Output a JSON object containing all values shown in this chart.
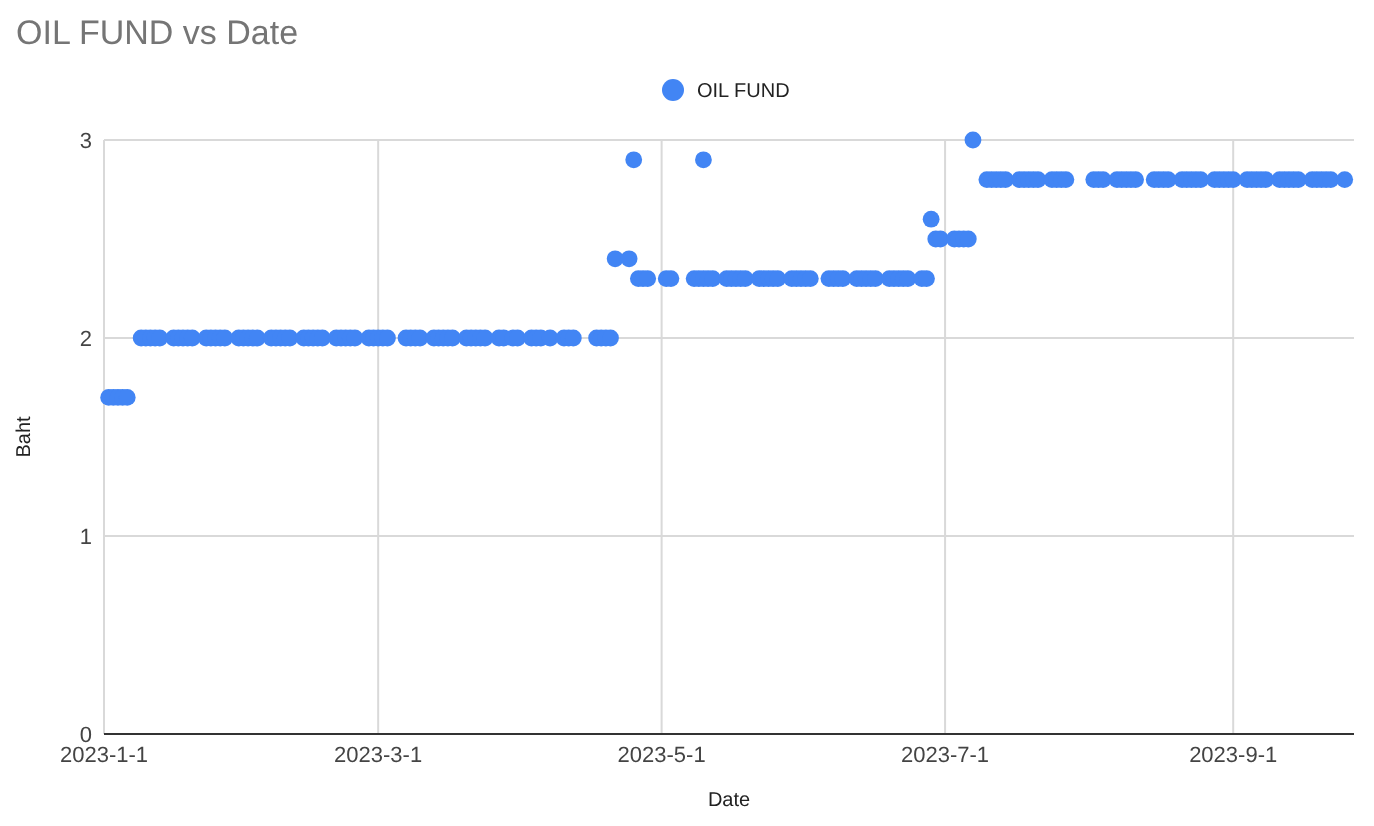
{
  "chart_data": {
    "type": "scatter",
    "title": "OIL FUND vs Date",
    "xlabel": "Date",
    "ylabel": "Baht",
    "legend": "top",
    "grid": true,
    "marker": "circle",
    "xlim": [
      "2023-01-01",
      "2023-09-27"
    ],
    "xticks": [
      {
        "value": "2023-01-01",
        "label": "2023-1-1"
      },
      {
        "value": "2023-03-01",
        "label": "2023-3-1"
      },
      {
        "value": "2023-05-01",
        "label": "2023-5-1"
      },
      {
        "value": "2023-07-01",
        "label": "2023-7-1"
      },
      {
        "value": "2023-09-01",
        "label": "2023-9-1"
      }
    ],
    "ylim": [
      0,
      3
    ],
    "yticks": [
      0,
      1,
      2,
      3
    ],
    "series": [
      {
        "name": "OIL FUND",
        "color": "#4285f4",
        "x": [
          "2023-01-02",
          "2023-01-03",
          "2023-01-04",
          "2023-01-05",
          "2023-01-06",
          "2023-01-09",
          "2023-01-10",
          "2023-01-11",
          "2023-01-12",
          "2023-01-13",
          "2023-01-16",
          "2023-01-17",
          "2023-01-18",
          "2023-01-19",
          "2023-01-20",
          "2023-01-23",
          "2023-01-24",
          "2023-01-25",
          "2023-01-26",
          "2023-01-27",
          "2023-01-30",
          "2023-01-31",
          "2023-02-01",
          "2023-02-02",
          "2023-02-03",
          "2023-02-06",
          "2023-02-07",
          "2023-02-08",
          "2023-02-09",
          "2023-02-10",
          "2023-02-13",
          "2023-02-14",
          "2023-02-15",
          "2023-02-16",
          "2023-02-17",
          "2023-02-20",
          "2023-02-21",
          "2023-02-22",
          "2023-02-23",
          "2023-02-24",
          "2023-02-27",
          "2023-02-28",
          "2023-03-01",
          "2023-03-02",
          "2023-03-03",
          "2023-03-07",
          "2023-03-08",
          "2023-03-09",
          "2023-03-10",
          "2023-03-13",
          "2023-03-14",
          "2023-03-15",
          "2023-03-16",
          "2023-03-17",
          "2023-03-20",
          "2023-03-21",
          "2023-03-22",
          "2023-03-23",
          "2023-03-24",
          "2023-03-27",
          "2023-03-28",
          "2023-03-30",
          "2023-03-31",
          "2023-04-03",
          "2023-04-04",
          "2023-04-05",
          "2023-04-07",
          "2023-04-10",
          "2023-04-11",
          "2023-04-12",
          "2023-04-17",
          "2023-04-18",
          "2023-04-19",
          "2023-04-20",
          "2023-04-21",
          "2023-04-24",
          "2023-04-25",
          "2023-04-26",
          "2023-04-27",
          "2023-04-28",
          "2023-05-02",
          "2023-05-03",
          "2023-05-08",
          "2023-05-09",
          "2023-05-10",
          "2023-05-10",
          "2023-05-11",
          "2023-05-12",
          "2023-05-15",
          "2023-05-16",
          "2023-05-17",
          "2023-05-18",
          "2023-05-19",
          "2023-05-22",
          "2023-05-23",
          "2023-05-24",
          "2023-05-25",
          "2023-05-26",
          "2023-05-29",
          "2023-05-30",
          "2023-05-31",
          "2023-06-01",
          "2023-06-02",
          "2023-06-06",
          "2023-06-07",
          "2023-06-08",
          "2023-06-09",
          "2023-06-12",
          "2023-06-13",
          "2023-06-14",
          "2023-06-15",
          "2023-06-16",
          "2023-06-19",
          "2023-06-20",
          "2023-06-21",
          "2023-06-22",
          "2023-06-23",
          "2023-06-26",
          "2023-06-27",
          "2023-06-28",
          "2023-06-29",
          "2023-06-30",
          "2023-07-03",
          "2023-07-04",
          "2023-07-05",
          "2023-07-06",
          "2023-07-07",
          "2023-07-10",
          "2023-07-11",
          "2023-07-12",
          "2023-07-13",
          "2023-07-14",
          "2023-07-17",
          "2023-07-18",
          "2023-07-19",
          "2023-07-20",
          "2023-07-21",
          "2023-07-24",
          "2023-07-25",
          "2023-07-26",
          "2023-07-27",
          "2023-08-02",
          "2023-08-03",
          "2023-08-04",
          "2023-08-07",
          "2023-08-08",
          "2023-08-09",
          "2023-08-10",
          "2023-08-11",
          "2023-08-15",
          "2023-08-16",
          "2023-08-17",
          "2023-08-18",
          "2023-08-21",
          "2023-08-22",
          "2023-08-23",
          "2023-08-24",
          "2023-08-25",
          "2023-08-28",
          "2023-08-29",
          "2023-08-30",
          "2023-08-31",
          "2023-09-01",
          "2023-09-04",
          "2023-09-05",
          "2023-09-06",
          "2023-09-07",
          "2023-09-08",
          "2023-09-11",
          "2023-09-12",
          "2023-09-13",
          "2023-09-14",
          "2023-09-15",
          "2023-09-18",
          "2023-09-19",
          "2023-09-20",
          "2023-09-21",
          "2023-09-22",
          "2023-09-25"
        ],
        "values": [
          1.7,
          1.7,
          1.7,
          1.7,
          1.7,
          2,
          2,
          2,
          2,
          2,
          2,
          2,
          2,
          2,
          2,
          2,
          2,
          2,
          2,
          2,
          2,
          2,
          2,
          2,
          2,
          2,
          2,
          2,
          2,
          2,
          2,
          2,
          2,
          2,
          2,
          2,
          2,
          2,
          2,
          2,
          2,
          2,
          2,
          2,
          2,
          2,
          2,
          2,
          2,
          2,
          2,
          2,
          2,
          2,
          2,
          2,
          2,
          2,
          2,
          2,
          2,
          2,
          2,
          2,
          2,
          2,
          2,
          2,
          2,
          2,
          2,
          2,
          2,
          2,
          2.4,
          2.4,
          2.9,
          2.3,
          2.3,
          2.3,
          2.3,
          2.3,
          2.3,
          2.3,
          2.9,
          2.3,
          2.3,
          2.3,
          2.3,
          2.3,
          2.3,
          2.3,
          2.3,
          2.3,
          2.3,
          2.3,
          2.3,
          2.3,
          2.3,
          2.3,
          2.3,
          2.3,
          2.3,
          2.3,
          2.3,
          2.3,
          2.3,
          2.3,
          2.3,
          2.3,
          2.3,
          2.3,
          2.3,
          2.3,
          2.3,
          2.3,
          2.3,
          2.3,
          2.3,
          2.6,
          2.5,
          2.5,
          2.5,
          2.5,
          2.5,
          2.5,
          3,
          2.8,
          2.8,
          2.8,
          2.8,
          2.8,
          2.8,
          2.8,
          2.8,
          2.8,
          2.8,
          2.8,
          2.8,
          2.8,
          2.8,
          2.8,
          2.8,
          2.8,
          2.8,
          2.8,
          2.8,
          2.8,
          2.8,
          2.8,
          2.8,
          2.8,
          2.8,
          2.8,
          2.8,
          2.8,
          2.8,
          2.8,
          2.8,
          2.8,
          2.8,
          2.8,
          2.8,
          2.8,
          2.8,
          2.8,
          2.8,
          2.8,
          2.8,
          2.8,
          2.8,
          2.8,
          2.8,
          2.8,
          2.8,
          2.8,
          2.8,
          2.8,
          2.8
        ]
      }
    ]
  }
}
